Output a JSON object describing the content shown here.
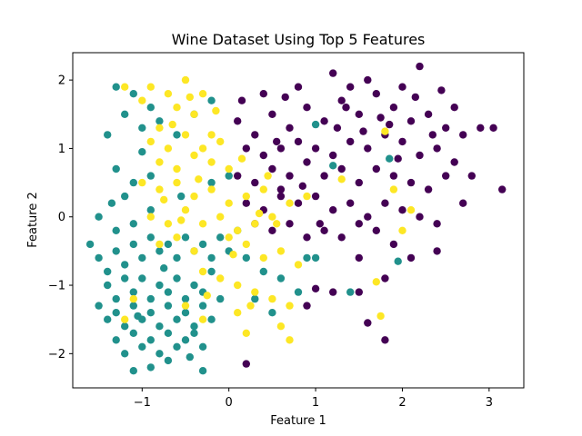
{
  "chart_data": {
    "type": "scatter",
    "title": "Wine Dataset Using Top 5 Features",
    "xlabel": "Feature 1",
    "ylabel": "Feature 2",
    "xlim": [
      -1.8,
      3.4
    ],
    "ylim": [
      -2.5,
      2.4
    ],
    "xticks": [
      -1,
      0,
      1,
      2,
      3
    ],
    "yticks": [
      -2,
      -1,
      0,
      1,
      2
    ],
    "grid": false,
    "legend": "none",
    "series": [
      {
        "color": "#440154",
        "points": [
          [
            0.1,
            1.4
          ],
          [
            0.3,
            1.2
          ],
          [
            0.5,
            1.5
          ],
          [
            0.7,
            1.3
          ],
          [
            0.9,
            1.6
          ],
          [
            1.1,
            1.4
          ],
          [
            1.3,
            1.7
          ],
          [
            1.5,
            1.5
          ],
          [
            1.7,
            1.8
          ],
          [
            1.9,
            1.6
          ],
          [
            2.1,
            1.4
          ],
          [
            2.3,
            1.5
          ],
          [
            2.5,
            1.3
          ],
          [
            2.7,
            1.2
          ],
          [
            1.2,
            2.1
          ],
          [
            1.6,
            2.0
          ],
          [
            2.2,
            2.2
          ],
          [
            0.4,
            1.8
          ],
          [
            0.8,
            1.9
          ],
          [
            1.4,
            1.9
          ],
          [
            2.0,
            1.9
          ],
          [
            2.6,
            1.6
          ],
          [
            2.9,
            1.3
          ],
          [
            3.05,
            1.3
          ],
          [
            3.15,
            0.4
          ],
          [
            0.2,
            1.0
          ],
          [
            0.4,
            0.9
          ],
          [
            0.6,
            1.0
          ],
          [
            0.8,
            1.1
          ],
          [
            1.0,
            1.0
          ],
          [
            1.2,
            0.9
          ],
          [
            1.4,
            1.1
          ],
          [
            1.6,
            1.0
          ],
          [
            1.8,
            1.2
          ],
          [
            2.0,
            1.1
          ],
          [
            2.2,
            0.9
          ],
          [
            2.4,
            1.0
          ],
          [
            2.6,
            0.8
          ],
          [
            2.8,
            0.6
          ],
          [
            0.1,
            0.6
          ],
          [
            0.3,
            0.5
          ],
          [
            0.5,
            0.7
          ],
          [
            0.7,
            0.6
          ],
          [
            0.9,
            0.8
          ],
          [
            1.1,
            0.6
          ],
          [
            1.3,
            0.7
          ],
          [
            1.5,
            0.5
          ],
          [
            1.7,
            0.7
          ],
          [
            1.9,
            0.6
          ],
          [
            2.1,
            0.5
          ],
          [
            2.3,
            0.4
          ],
          [
            2.5,
            0.6
          ],
          [
            2.7,
            0.2
          ],
          [
            0.2,
            0.2
          ],
          [
            0.4,
            0.1
          ],
          [
            0.6,
            0.3
          ],
          [
            0.8,
            0.2
          ],
          [
            1.0,
            0.3
          ],
          [
            1.2,
            0.1
          ],
          [
            1.4,
            0.2
          ],
          [
            1.6,
            0.0
          ],
          [
            1.8,
            0.2
          ],
          [
            2.0,
            0.1
          ],
          [
            2.2,
            0.0
          ],
          [
            2.4,
            -0.1
          ],
          [
            0.3,
            -0.1
          ],
          [
            0.5,
            -0.2
          ],
          [
            0.7,
            -0.1
          ],
          [
            0.9,
            -0.3
          ],
          [
            1.1,
            -0.2
          ],
          [
            1.3,
            -0.3
          ],
          [
            1.5,
            -0.1
          ],
          [
            1.7,
            -0.2
          ],
          [
            1.9,
            -0.4
          ],
          [
            2.1,
            -0.6
          ],
          [
            2.4,
            -0.5
          ],
          [
            1.5,
            -0.6
          ],
          [
            1.8,
            -0.9
          ],
          [
            1.5,
            -1.1
          ],
          [
            1.2,
            -1.1
          ],
          [
            1.6,
            -1.55
          ],
          [
            1.8,
            -1.8
          ],
          [
            0.2,
            -2.15
          ],
          [
            0.9,
            -1.3
          ],
          [
            1.0,
            -1.05
          ],
          [
            1.05,
            -0.1
          ],
          [
            0.6,
            0.4
          ],
          [
            1.25,
            1.3
          ],
          [
            1.85,
            1.35
          ],
          [
            2.45,
            1.85
          ],
          [
            0.15,
            1.7
          ],
          [
            0.55,
            1.1
          ],
          [
            1.35,
            1.6
          ],
          [
            1.75,
            1.45
          ],
          [
            2.15,
            1.75
          ],
          [
            2.35,
            1.2
          ],
          [
            0.65,
            1.75
          ],
          [
            1.95,
            0.85
          ],
          [
            1.55,
            1.25
          ],
          [
            0.85,
            0.45
          ]
        ]
      },
      {
        "color": "#21918c",
        "points": [
          [
            -1.3,
            1.9
          ],
          [
            -1.1,
            1.8
          ],
          [
            -0.9,
            1.6
          ],
          [
            -1.2,
            1.5
          ],
          [
            -1.4,
            1.2
          ],
          [
            -1.0,
            1.3
          ],
          [
            -0.8,
            1.4
          ],
          [
            -0.6,
            1.2
          ],
          [
            -0.4,
            1.5
          ],
          [
            -0.2,
            1.7
          ],
          [
            -1.3,
            0.7
          ],
          [
            -1.1,
            0.5
          ],
          [
            -0.9,
            0.6
          ],
          [
            -1.2,
            0.3
          ],
          [
            -1.5,
            0.0
          ],
          [
            -1.3,
            -0.2
          ],
          [
            -1.1,
            -0.1
          ],
          [
            -0.9,
            0.1
          ],
          [
            -0.2,
            0.5
          ],
          [
            0.0,
            0.6
          ],
          [
            -1.6,
            -0.4
          ],
          [
            -1.5,
            -0.6
          ],
          [
            -1.4,
            -0.8
          ],
          [
            -1.3,
            -0.5
          ],
          [
            -1.2,
            -0.7
          ],
          [
            -1.1,
            -0.4
          ],
          [
            -1.0,
            -0.6
          ],
          [
            -0.9,
            -0.3
          ],
          [
            -0.8,
            -0.5
          ],
          [
            -0.7,
            -0.4
          ],
          [
            -0.6,
            -0.6
          ],
          [
            -0.5,
            -0.3
          ],
          [
            -0.4,
            -0.5
          ],
          [
            -0.3,
            -0.4
          ],
          [
            -0.2,
            -0.6
          ],
          [
            -0.1,
            -0.3
          ],
          [
            0.0,
            -0.5
          ],
          [
            -1.4,
            -1.0
          ],
          [
            -1.3,
            -1.2
          ],
          [
            -1.2,
            -0.9
          ],
          [
            -1.1,
            -1.1
          ],
          [
            -1.0,
            -0.9
          ],
          [
            -0.9,
            -1.2
          ],
          [
            -0.8,
            -1.0
          ],
          [
            -0.7,
            -1.1
          ],
          [
            -0.6,
            -0.9
          ],
          [
            -0.5,
            -1.2
          ],
          [
            -0.4,
            -1.0
          ],
          [
            -0.3,
            -1.1
          ],
          [
            -0.2,
            -0.8
          ],
          [
            -1.5,
            -1.3
          ],
          [
            -1.4,
            -1.5
          ],
          [
            -1.3,
            -1.4
          ],
          [
            -1.2,
            -1.6
          ],
          [
            -1.1,
            -1.3
          ],
          [
            -1.0,
            -1.5
          ],
          [
            -0.9,
            -1.4
          ],
          [
            -0.8,
            -1.6
          ],
          [
            -0.7,
            -1.3
          ],
          [
            -0.6,
            -1.5
          ],
          [
            -0.5,
            -1.4
          ],
          [
            -0.4,
            -1.6
          ],
          [
            -0.3,
            -1.3
          ],
          [
            -0.2,
            -1.5
          ],
          [
            -0.1,
            -1.2
          ],
          [
            -1.3,
            -1.8
          ],
          [
            -1.2,
            -2.0
          ],
          [
            -1.1,
            -1.7
          ],
          [
            -1.0,
            -1.9
          ],
          [
            -0.9,
            -1.8
          ],
          [
            -0.8,
            -2.0
          ],
          [
            -0.7,
            -1.7
          ],
          [
            -0.6,
            -1.9
          ],
          [
            -0.5,
            -1.8
          ],
          [
            -0.4,
            -1.7
          ],
          [
            -0.3,
            -1.9
          ],
          [
            -1.1,
            -2.25
          ],
          [
            -0.9,
            -2.2
          ],
          [
            -0.3,
            -2.25
          ],
          [
            -0.7,
            -2.1
          ],
          [
            0.2,
            -0.6
          ],
          [
            0.4,
            -0.8
          ],
          [
            0.6,
            -0.9
          ],
          [
            0.8,
            -1.1
          ],
          [
            1.0,
            -0.6
          ],
          [
            0.3,
            -1.2
          ],
          [
            0.5,
            -1.4
          ],
          [
            1.4,
            -1.1
          ],
          [
            1.95,
            -0.65
          ],
          [
            1.0,
            1.35
          ],
          [
            1.85,
            0.85
          ],
          [
            1.2,
            0.75
          ],
          [
            0.9,
            -0.6
          ],
          [
            0.1,
            -0.2
          ],
          [
            -1.0,
            0.95
          ],
          [
            -0.55,
            0.3
          ],
          [
            -1.35,
            0.2
          ],
          [
            -0.75,
            -0.75
          ],
          [
            -1.05,
            -1.45
          ],
          [
            -0.45,
            -2.05
          ]
        ]
      },
      {
        "color": "#fde725",
        "points": [
          [
            -0.9,
            1.9
          ],
          [
            -0.7,
            1.8
          ],
          [
            -0.5,
            2.0
          ],
          [
            -0.3,
            1.8
          ],
          [
            -0.6,
            1.6
          ],
          [
            -0.4,
            1.5
          ],
          [
            -0.8,
            1.3
          ],
          [
            -0.2,
            1.2
          ],
          [
            -1.2,
            1.9
          ],
          [
            -1.0,
            1.7
          ],
          [
            -0.9,
            1.1
          ],
          [
            -0.7,
            1.0
          ],
          [
            -0.5,
            1.2
          ],
          [
            -0.3,
            1.0
          ],
          [
            -0.1,
            1.1
          ],
          [
            -0.8,
            0.8
          ],
          [
            -0.6,
            0.7
          ],
          [
            -0.4,
            0.9
          ],
          [
            -0.2,
            0.8
          ],
          [
            0.0,
            0.7
          ],
          [
            -1.0,
            0.5
          ],
          [
            -0.8,
            0.4
          ],
          [
            -0.6,
            0.5
          ],
          [
            -0.4,
            0.3
          ],
          [
            -0.2,
            0.4
          ],
          [
            0.0,
            0.2
          ],
          [
            0.2,
            0.3
          ],
          [
            0.4,
            0.4
          ],
          [
            -0.9,
            0.0
          ],
          [
            -0.7,
            -0.1
          ],
          [
            -0.5,
            0.1
          ],
          [
            -0.3,
            -0.1
          ],
          [
            -0.1,
            0.0
          ],
          [
            0.1,
            -0.2
          ],
          [
            0.3,
            -0.1
          ],
          [
            0.5,
            0.0
          ],
          [
            0.7,
            0.2
          ],
          [
            0.9,
            0.3
          ],
          [
            -0.8,
            -0.4
          ],
          [
            -0.6,
            -0.3
          ],
          [
            -0.4,
            -0.5
          ],
          [
            0.0,
            -0.3
          ],
          [
            0.2,
            -0.4
          ],
          [
            0.4,
            -0.6
          ],
          [
            0.6,
            -0.5
          ],
          [
            -0.3,
            -0.8
          ],
          [
            -0.1,
            -0.9
          ],
          [
            0.1,
            -1.0
          ],
          [
            0.3,
            -1.1
          ],
          [
            0.5,
            -1.2
          ],
          [
            0.7,
            -1.3
          ],
          [
            -0.5,
            -1.3
          ],
          [
            -0.3,
            -1.5
          ],
          [
            0.1,
            -1.4
          ],
          [
            0.2,
            -1.7
          ],
          [
            0.6,
            -1.6
          ],
          [
            0.7,
            -1.8
          ],
          [
            -1.1,
            -1.2
          ],
          [
            -1.2,
            -1.5
          ],
          [
            1.7,
            -0.95
          ],
          [
            1.75,
            -1.45
          ],
          [
            1.8,
            1.25
          ],
          [
            1.9,
            0.4
          ],
          [
            2.0,
            -0.2
          ],
          [
            2.1,
            0.1
          ],
          [
            1.3,
            0.55
          ],
          [
            0.55,
            -0.1
          ],
          [
            -0.65,
            1.35
          ],
          [
            -0.35,
            0.55
          ],
          [
            -0.15,
            1.55
          ],
          [
            0.15,
            0.85
          ],
          [
            -0.55,
            -0.05
          ],
          [
            0.35,
            0.05
          ],
          [
            -0.75,
            0.25
          ],
          [
            0.05,
            -0.55
          ],
          [
            -0.45,
            1.75
          ],
          [
            0.25,
            -1.3
          ],
          [
            0.8,
            -0.7
          ],
          [
            -0.25,
            -1.15
          ],
          [
            0.45,
            0.6
          ]
        ]
      }
    ]
  }
}
